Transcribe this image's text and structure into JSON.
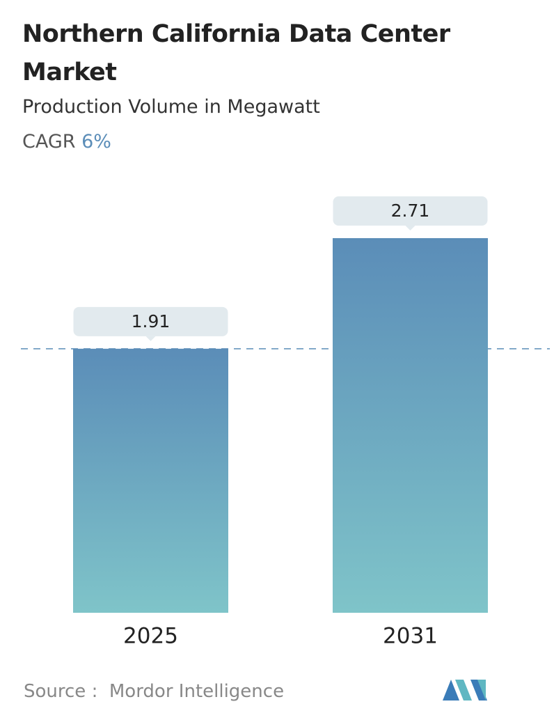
{
  "chart_data": {
    "type": "bar",
    "title": "Northern California Data Center Market",
    "subtitle": "Production Volume in Megawatt",
    "cagr_label": "CAGR",
    "cagr": "6%",
    "categories": [
      "2025",
      "2031"
    ],
    "values": [
      1.91,
      2.71
    ],
    "color": [
      "#5b8db8",
      "#7fc4c9"
    ],
    "source_label": "Source :",
    "source": "Mordor Intelligence"
  }
}
